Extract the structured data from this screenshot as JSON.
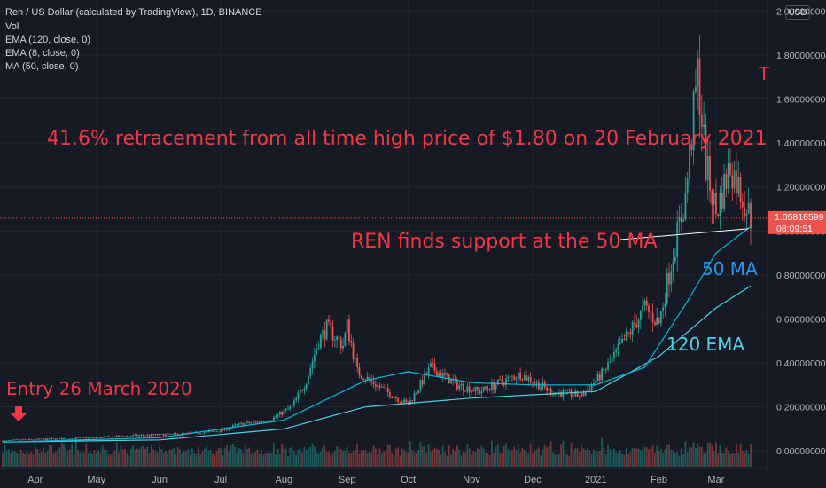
{
  "header": {
    "symbol_line": "Ren / US Dollar (calculated by TradingView), 1D, BINANCE",
    "indicators": [
      "Vol",
      "EMA (120, close, 0)",
      "EMA (8, close, 0)",
      "MA (50, close, 0)"
    ]
  },
  "currency_button": "USD",
  "price_scale": {
    "labels": [
      "2.00000000",
      "1.80000000",
      "1.60000000",
      "1.40000000",
      "1.20000000",
      "1.00000000",
      "0.80000000",
      "0.60000000",
      "0.40000000",
      "0.20000000",
      "0.00000000"
    ],
    "current_price": "1.05816599",
    "countdown": "08:09:51"
  },
  "time_axis": {
    "labels": [
      "Apr",
      "May",
      "Jun",
      "Jul",
      "Aug",
      "Sep",
      "Oct",
      "Nov",
      "Dec",
      "2021",
      "Feb",
      "Mar"
    ]
  },
  "annotations": {
    "retracement": "41.6% retracement from all time high price of $1.80 on 20 February 2021",
    "support": "REN finds support at the 50 MA",
    "ma50": "50 MA",
    "ema120": "120 EMA",
    "entry": "Entry 26 March 2020",
    "corner_mark": "T"
  },
  "colors": {
    "background": "#161a25",
    "up": "#26a69a",
    "down": "#ef5350",
    "annotation": "#f23645",
    "ma_line": "#00bcd4",
    "ema_line": "#4dd0e1",
    "axis_text": "#b2b5be"
  },
  "chart_data": {
    "type": "candlestick",
    "title": "Ren / US Dollar (calculated by TradingView), 1D, BINANCE",
    "x_range": [
      "2020-03-16",
      "2021-03-18"
    ],
    "ylim": [
      -0.08,
      2.05
    ],
    "grid": true,
    "last_price": 1.05816599,
    "all_time_high": 1.8,
    "all_time_high_date": "2021-02-20",
    "retracement_pct": 41.6,
    "entry_date": "2020-03-26",
    "price_path": [
      [
        "2020-03-16",
        0.045
      ],
      [
        "2020-03-26",
        0.05
      ],
      [
        "2020-04-15",
        0.055
      ],
      [
        "2020-05-01",
        0.06
      ],
      [
        "2020-05-20",
        0.07
      ],
      [
        "2020-06-10",
        0.075
      ],
      [
        "2020-06-30",
        0.09
      ],
      [
        "2020-07-10",
        0.12
      ],
      [
        "2020-07-25",
        0.14
      ],
      [
        "2020-08-05",
        0.2
      ],
      [
        "2020-08-12",
        0.32
      ],
      [
        "2020-08-18",
        0.5
      ],
      [
        "2020-08-22",
        0.56
      ],
      [
        "2020-08-30",
        0.48
      ],
      [
        "2020-09-01",
        0.57
      ],
      [
        "2020-09-06",
        0.36
      ],
      [
        "2020-09-20",
        0.27
      ],
      [
        "2020-10-01",
        0.21
      ],
      [
        "2020-10-12",
        0.38
      ],
      [
        "2020-10-25",
        0.3
      ],
      [
        "2020-11-05",
        0.27
      ],
      [
        "2020-11-25",
        0.35
      ],
      [
        "2020-12-10",
        0.27
      ],
      [
        "2020-12-25",
        0.25
      ],
      [
        "2021-01-05",
        0.36
      ],
      [
        "2021-01-15",
        0.5
      ],
      [
        "2021-01-25",
        0.65
      ],
      [
        "2021-02-01",
        0.58
      ],
      [
        "2021-02-08",
        0.9
      ],
      [
        "2021-02-14",
        1.15
      ],
      [
        "2021-02-20",
        1.72
      ],
      [
        "2021-02-24",
        1.3
      ],
      [
        "2021-03-01",
        1.08
      ],
      [
        "2021-03-08",
        1.3
      ],
      [
        "2021-03-13",
        1.18
      ],
      [
        "2021-03-18",
        1.058
      ]
    ],
    "series": [
      {
        "name": "MA (50, close, 0)",
        "points": [
          [
            "2020-03-16",
            0.04
          ],
          [
            "2020-06-01",
            0.06
          ],
          [
            "2020-08-01",
            0.14
          ],
          [
            "2020-09-10",
            0.32
          ],
          [
            "2020-10-01",
            0.36
          ],
          [
            "2020-11-01",
            0.31
          ],
          [
            "2020-12-01",
            0.3
          ],
          [
            "2021-01-01",
            0.3
          ],
          [
            "2021-01-25",
            0.38
          ],
          [
            "2021-02-15",
            0.68
          ],
          [
            "2021-03-01",
            0.9
          ],
          [
            "2021-03-18",
            1.02
          ]
        ]
      },
      {
        "name": "EMA (120, close, 0)",
        "points": [
          [
            "2020-03-16",
            0.04
          ],
          [
            "2020-06-01",
            0.05
          ],
          [
            "2020-08-01",
            0.1
          ],
          [
            "2020-09-10",
            0.2
          ],
          [
            "2020-11-01",
            0.24
          ],
          [
            "2021-01-01",
            0.27
          ],
          [
            "2021-02-01",
            0.43
          ],
          [
            "2021-03-01",
            0.65
          ],
          [
            "2021-03-18",
            0.75
          ]
        ]
      }
    ],
    "support_line": [
      [
        "2021-01-08",
        0.95
      ],
      [
        "2021-03-17",
        1.01
      ]
    ]
  }
}
